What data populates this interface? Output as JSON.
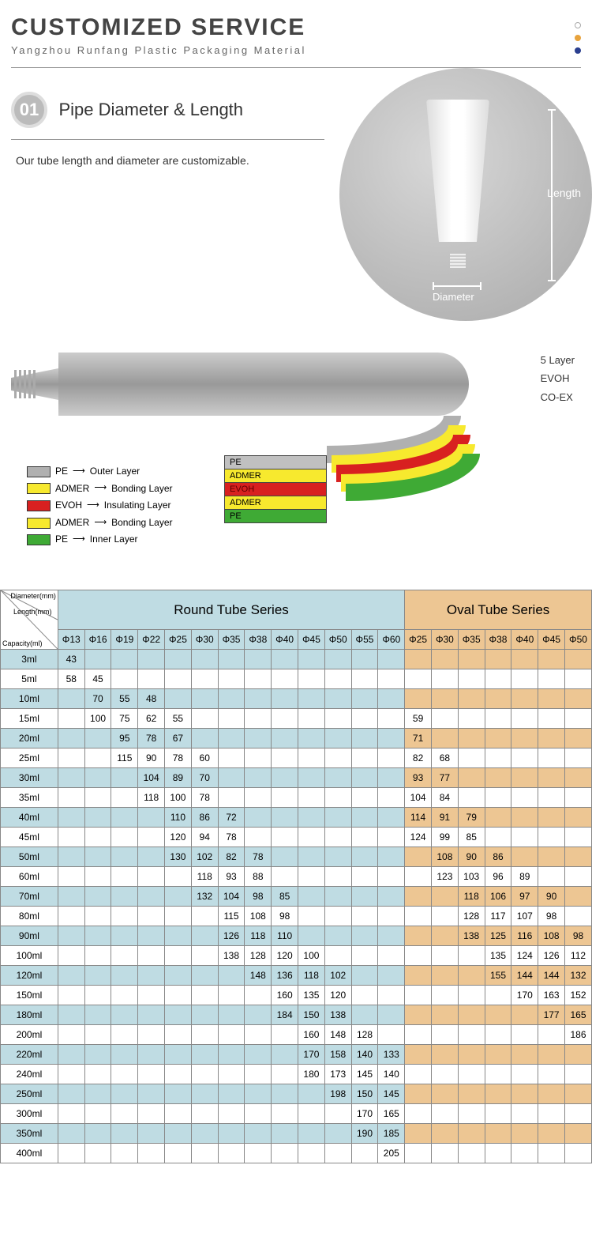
{
  "header": {
    "title": "CUSTOMIZED SERVICE",
    "subtitle": "Yangzhou Runfang Plastic Packaging Material",
    "dot_colors": [
      "#cccccc",
      "#e8a33d",
      "#2a3f8f"
    ]
  },
  "section1": {
    "badge": "01",
    "title": "Pipe Diameter & Length",
    "desc": "Our tube length and diameter are customizable.",
    "length_label": "Length",
    "diameter_label": "Diameter"
  },
  "layers": {
    "right_labels": [
      "5 Layer",
      "EVOH",
      "CO-EX"
    ],
    "legend": [
      {
        "color": "#b0b0b0",
        "mat": "PE",
        "role": "Outer Layer"
      },
      {
        "color": "#f7e92e",
        "mat": "ADMER",
        "role": "Bonding Layer"
      },
      {
        "color": "#d82020",
        "mat": "EVOH",
        "role": "Insulating Layer"
      },
      {
        "color": "#f7e92e",
        "mat": "ADMER",
        "role": "Bonding Layer"
      },
      {
        "color": "#3faa35",
        "mat": "PE",
        "role": "Inner Layer"
      }
    ],
    "peel": [
      {
        "label": "PE",
        "bg": "#c0c0c0"
      },
      {
        "label": "ADMER",
        "bg": "#f7e92e"
      },
      {
        "label": "EVOH",
        "bg": "#d82020",
        "fg": "#5a0000"
      },
      {
        "label": "ADMER",
        "bg": "#f7e92e"
      },
      {
        "label": "PE",
        "bg": "#3faa35"
      }
    ],
    "curves": [
      "#b0b0b0",
      "#f7e92e",
      "#d82020",
      "#f7e92e",
      "#3faa35"
    ]
  },
  "table": {
    "corner": {
      "t1": "Diameter(mm)",
      "t2": "Length(mm)",
      "t3": "Capacity(ml)"
    },
    "round_title": "Round Tube Series",
    "oval_title": "Oval Tube Series",
    "round_dia": [
      "Φ13",
      "Φ16",
      "Φ19",
      "Φ22",
      "Φ25",
      "Φ30",
      "Φ35",
      "Φ38",
      "Φ40",
      "Φ45",
      "Φ50",
      "Φ55",
      "Φ60"
    ],
    "oval_dia": [
      "Φ25",
      "Φ30",
      "Φ35",
      "Φ38",
      "Φ40",
      "Φ45",
      "Φ50"
    ],
    "rows": [
      {
        "cap": "3ml",
        "r": [
          "43",
          "",
          "",
          "",
          "",
          "",
          "",
          "",
          "",
          "",
          "",
          "",
          ""
        ],
        "o": [
          "",
          "",
          "",
          "",
          "",
          "",
          ""
        ]
      },
      {
        "cap": "5ml",
        "r": [
          "58",
          "45",
          "",
          "",
          "",
          "",
          "",
          "",
          "",
          "",
          "",
          "",
          ""
        ],
        "o": [
          "",
          "",
          "",
          "",
          "",
          "",
          ""
        ]
      },
      {
        "cap": "10ml",
        "r": [
          "",
          "70",
          "55",
          "48",
          "",
          "",
          "",
          "",
          "",
          "",
          "",
          "",
          ""
        ],
        "o": [
          "",
          "",
          "",
          "",
          "",
          "",
          ""
        ]
      },
      {
        "cap": "15ml",
        "r": [
          "",
          "100",
          "75",
          "62",
          "55",
          "",
          "",
          "",
          "",
          "",
          "",
          "",
          ""
        ],
        "o": [
          "59",
          "",
          "",
          "",
          "",
          "",
          ""
        ]
      },
      {
        "cap": "20ml",
        "r": [
          "",
          "",
          "95",
          "78",
          "67",
          "",
          "",
          "",
          "",
          "",
          "",
          "",
          ""
        ],
        "o": [
          "71",
          "",
          "",
          "",
          "",
          "",
          ""
        ]
      },
      {
        "cap": "25ml",
        "r": [
          "",
          "",
          "115",
          "90",
          "78",
          "60",
          "",
          "",
          "",
          "",
          "",
          "",
          ""
        ],
        "o": [
          "82",
          "68",
          "",
          "",
          "",
          "",
          ""
        ]
      },
      {
        "cap": "30ml",
        "r": [
          "",
          "",
          "",
          "104",
          "89",
          "70",
          "",
          "",
          "",
          "",
          "",
          "",
          ""
        ],
        "o": [
          "93",
          "77",
          "",
          "",
          "",
          "",
          ""
        ]
      },
      {
        "cap": "35ml",
        "r": [
          "",
          "",
          "",
          "118",
          "100",
          "78",
          "",
          "",
          "",
          "",
          "",
          "",
          ""
        ],
        "o": [
          "104",
          "84",
          "",
          "",
          "",
          "",
          ""
        ]
      },
      {
        "cap": "40ml",
        "r": [
          "",
          "",
          "",
          "",
          "110",
          "86",
          "72",
          "",
          "",
          "",
          "",
          "",
          ""
        ],
        "o": [
          "114",
          "91",
          "79",
          "",
          "",
          "",
          ""
        ]
      },
      {
        "cap": "45ml",
        "r": [
          "",
          "",
          "",
          "",
          "120",
          "94",
          "78",
          "",
          "",
          "",
          "",
          "",
          ""
        ],
        "o": [
          "124",
          "99",
          "85",
          "",
          "",
          "",
          ""
        ]
      },
      {
        "cap": "50ml",
        "r": [
          "",
          "",
          "",
          "",
          "130",
          "102",
          "82",
          "78",
          "",
          "",
          "",
          "",
          ""
        ],
        "o": [
          "",
          "108",
          "90",
          "86",
          "",
          "",
          ""
        ]
      },
      {
        "cap": "60ml",
        "r": [
          "",
          "",
          "",
          "",
          "",
          "118",
          "93",
          "88",
          "",
          "",
          "",
          "",
          ""
        ],
        "o": [
          "",
          "123",
          "103",
          "96",
          "89",
          "",
          ""
        ]
      },
      {
        "cap": "70ml",
        "r": [
          "",
          "",
          "",
          "",
          "",
          "132",
          "104",
          "98",
          "85",
          "",
          "",
          "",
          ""
        ],
        "o": [
          "",
          "",
          "118",
          "106",
          "97",
          "90",
          ""
        ]
      },
      {
        "cap": "80ml",
        "r": [
          "",
          "",
          "",
          "",
          "",
          "",
          "115",
          "108",
          "98",
          "",
          "",
          "",
          ""
        ],
        "o": [
          "",
          "",
          "128",
          "117",
          "107",
          "98",
          ""
        ]
      },
      {
        "cap": "90ml",
        "r": [
          "",
          "",
          "",
          "",
          "",
          "",
          "126",
          "118",
          "110",
          "",
          "",
          "",
          ""
        ],
        "o": [
          "",
          "",
          "138",
          "125",
          "116",
          "108",
          "98"
        ]
      },
      {
        "cap": "100ml",
        "r": [
          "",
          "",
          "",
          "",
          "",
          "",
          "138",
          "128",
          "120",
          "100",
          "",
          "",
          ""
        ],
        "o": [
          "",
          "",
          "",
          "135",
          "124",
          "126",
          "112"
        ]
      },
      {
        "cap": "120ml",
        "r": [
          "",
          "",
          "",
          "",
          "",
          "",
          "",
          "148",
          "136",
          "118",
          "102",
          "",
          ""
        ],
        "o": [
          "",
          "",
          "",
          "155",
          "144",
          "144",
          "132"
        ]
      },
      {
        "cap": "150ml",
        "r": [
          "",
          "",
          "",
          "",
          "",
          "",
          "",
          "",
          "160",
          "135",
          "120",
          "",
          ""
        ],
        "o": [
          "",
          "",
          "",
          "",
          "170",
          "163",
          "152"
        ]
      },
      {
        "cap": "180ml",
        "r": [
          "",
          "",
          "",
          "",
          "",
          "",
          "",
          "",
          "184",
          "150",
          "138",
          "",
          ""
        ],
        "o": [
          "",
          "",
          "",
          "",
          "",
          "177",
          "165"
        ]
      },
      {
        "cap": "200ml",
        "r": [
          "",
          "",
          "",
          "",
          "",
          "",
          "",
          "",
          "",
          "160",
          "148",
          "128",
          ""
        ],
        "o": [
          "",
          "",
          "",
          "",
          "",
          "",
          "186"
        ]
      },
      {
        "cap": "220ml",
        "r": [
          "",
          "",
          "",
          "",
          "",
          "",
          "",
          "",
          "",
          "170",
          "158",
          "140",
          "133"
        ],
        "o": [
          "",
          "",
          "",
          "",
          "",
          "",
          ""
        ]
      },
      {
        "cap": "240ml",
        "r": [
          "",
          "",
          "",
          "",
          "",
          "",
          "",
          "",
          "",
          "180",
          "173",
          "145",
          "140"
        ],
        "o": [
          "",
          "",
          "",
          "",
          "",
          "",
          ""
        ]
      },
      {
        "cap": "250ml",
        "r": [
          "",
          "",
          "",
          "",
          "",
          "",
          "",
          "",
          "",
          "",
          "198",
          "150",
          "145"
        ],
        "o": [
          "",
          "",
          "",
          "",
          "",
          "",
          ""
        ]
      },
      {
        "cap": "300ml",
        "r": [
          "",
          "",
          "",
          "",
          "",
          "",
          "",
          "",
          "",
          "",
          "",
          "170",
          "165"
        ],
        "o": [
          "",
          "",
          "",
          "",
          "",
          "",
          ""
        ]
      },
      {
        "cap": "350ml",
        "r": [
          "",
          "",
          "",
          "",
          "",
          "",
          "",
          "",
          "",
          "",
          "",
          "190",
          "185"
        ],
        "o": [
          "",
          "",
          "",
          "",
          "",
          "",
          ""
        ]
      },
      {
        "cap": "400ml",
        "r": [
          "",
          "",
          "",
          "",
          "",
          "",
          "",
          "",
          "",
          "",
          "",
          "",
          "205"
        ],
        "o": [
          "",
          "",
          "",
          "",
          "",
          "",
          ""
        ]
      }
    ]
  }
}
